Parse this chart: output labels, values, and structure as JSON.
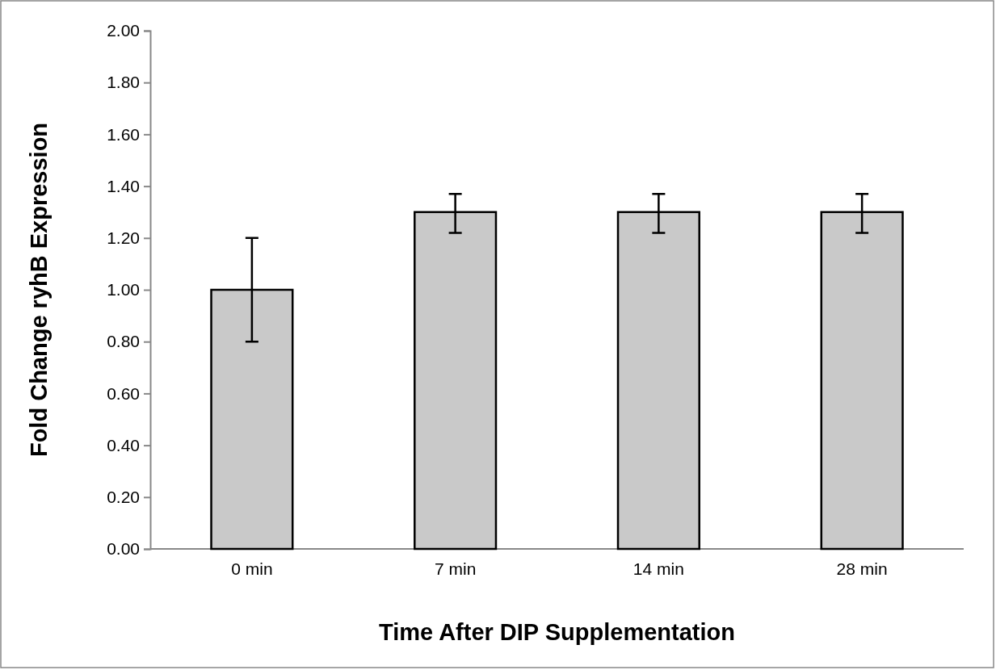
{
  "chart_data": {
    "type": "bar",
    "xlabel": "Time After DIP Supplementation",
    "ylabel": "Fold Change ryhB Expression",
    "categories": [
      "0 min",
      "7 min",
      "14 min",
      "28 min"
    ],
    "values": [
      1.0,
      1.3,
      1.3,
      1.3
    ],
    "errors": [
      [
        0.8,
        1.2
      ],
      [
        1.22,
        1.37
      ],
      [
        1.22,
        1.37
      ],
      [
        1.22,
        1.37
      ]
    ],
    "color": "#c9c9c9",
    "ylim": [
      0,
      2
    ],
    "yticks": [
      {
        "value": 0,
        "label": "0.00"
      },
      {
        "value": 0.2,
        "label": "0.20"
      },
      {
        "value": 0.4,
        "label": "0.40"
      },
      {
        "value": 0.6,
        "label": "0.60"
      },
      {
        "value": 0.8,
        "label": "0.80"
      },
      {
        "value": 1,
        "label": "1.00"
      },
      {
        "value": 1.2,
        "label": "1.20"
      },
      {
        "value": 1.4,
        "label": "1.40"
      },
      {
        "value": 1.6,
        "label": "1.60"
      },
      {
        "value": 1.8,
        "label": "1.80"
      },
      {
        "value": 2,
        "label": "2.00"
      }
    ]
  }
}
